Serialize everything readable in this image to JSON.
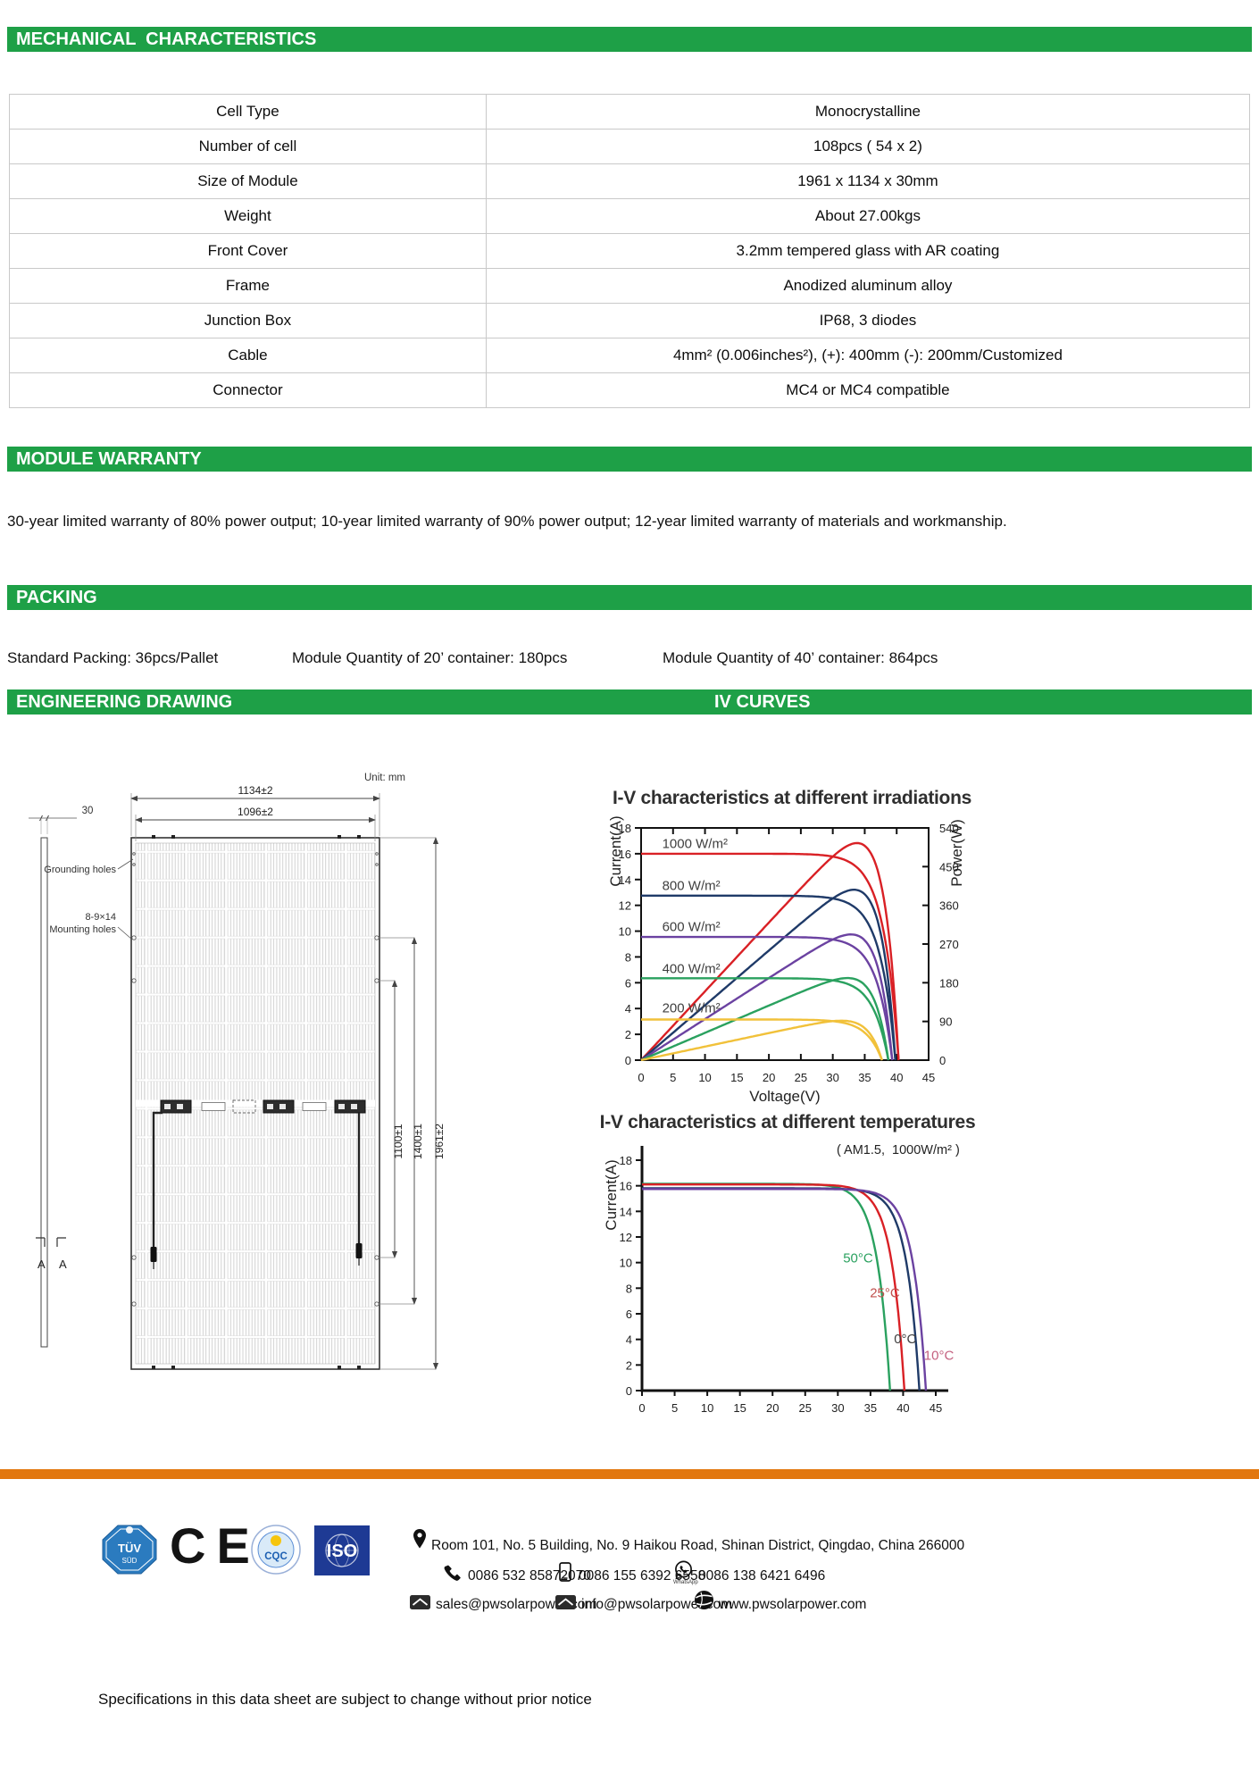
{
  "sections": {
    "mechanical": "MECHANICAL  CHARACTERISTICS",
    "module_warranty": "MODULE WARRANTY",
    "packing": "PACKING",
    "engineering_drawing": "ENGINEERING DRAWING",
    "iv_curves": "IV CURVES"
  },
  "mechanical_table": {
    "rows": [
      {
        "label": "Cell Type",
        "value": "Monocrystalline"
      },
      {
        "label": "Number of cell",
        "value": "108pcs ( 54 x 2)"
      },
      {
        "label": "Size of Module",
        "value": "1961 x 1134 x 30mm"
      },
      {
        "label": "Weight",
        "value": "About 27.00kgs"
      },
      {
        "label": "Front Cover",
        "value": "3.2mm tempered glass with AR coating"
      },
      {
        "label": "Frame",
        "value": "Anodized aluminum alloy"
      },
      {
        "label": "Junction Box",
        "value": "IP68, 3 diodes"
      },
      {
        "label": "Cable",
        "value": "4mm² (0.006inches²), (+): 400mm (-): 200mm/Customized"
      },
      {
        "label": "Connector",
        "value": "MC4 or MC4 compatible"
      }
    ]
  },
  "warranty_text": "30-year limited warranty of 80% power output; 10-year limited warranty of 90% power output; 12-year limited warranty of materials and workmanship.",
  "packing": {
    "item1": "Standard Packing: 36pcs/Pallet",
    "item2": "Module Quantity of 20’ container: 180pcs",
    "item3": "Module Quantity of 40’ container: 864pcs"
  },
  "drawing": {
    "unit": "Unit: mm",
    "dim_width_outer": "1134±2",
    "dim_width_inner": "1096±2",
    "dim_thickness": "30",
    "grounding_label": "Grounding holes",
    "mounting_label_line1": "8-9×14",
    "mounting_label_line2": "Mounting holes",
    "dim_height_1": "1100±1",
    "dim_height_2": "1400±1",
    "dim_height_3": "1961±2",
    "section_mark": "A"
  },
  "chart_data": [
    {
      "type": "line",
      "title": "I-V characteristics at different irradiations",
      "xlabel": "Voltage(V)",
      "ylabel": "Current(A)",
      "y2label": "Power(W)",
      "xlim": [
        0,
        45
      ],
      "ylim": [
        0,
        18
      ],
      "y2lim": [
        0,
        540
      ],
      "x_ticks": [
        0,
        5,
        10,
        15,
        20,
        25,
        30,
        35,
        40,
        45
      ],
      "y_ticks": [
        0,
        2,
        4,
        6,
        8,
        10,
        12,
        14,
        16,
        18
      ],
      "y2_ticks": [
        0,
        90,
        180,
        270,
        360,
        450,
        540
      ],
      "grid": false,
      "legend_position": "inline-labels",
      "has_power_curves": true,
      "knee": 2.4,
      "series": [
        {
          "name": "1000 W/m²",
          "color": "#d92025",
          "isc": 16.0,
          "voc": 40.3,
          "pmax_w": 505,
          "label_pos": [
            3.3,
            16.45
          ]
        },
        {
          "name": "800 W/m²",
          "color": "#1f3a68",
          "isc": 12.75,
          "voc": 39.8,
          "pmax_w": 405,
          "label_pos": [
            3.3,
            13.2
          ]
        },
        {
          "name": "600 W/m²",
          "color": "#6b42a1",
          "isc": 9.55,
          "voc": 39.3,
          "pmax_w": 305,
          "label_pos": [
            3.3,
            10.0
          ]
        },
        {
          "name": "400 W/m²",
          "color": "#2aa15f",
          "isc": 6.35,
          "voc": 38.7,
          "pmax_w": 203,
          "label_pos": [
            3.3,
            6.75
          ]
        },
        {
          "name": "200 W/m²",
          "color": "#f1c13a",
          "isc": 3.15,
          "voc": 37.7,
          "pmax_w": 100,
          "label_pos": [
            3.3,
            3.7
          ]
        }
      ]
    },
    {
      "type": "line",
      "title": "I-V characteristics at different temperatures",
      "annotation": "( AM1.5,  1000W/m² )",
      "xlabel": "",
      "ylabel": "Current(A)",
      "xlim": [
        0,
        45
      ],
      "ylim": [
        0,
        18
      ],
      "x_ticks": [
        0,
        5,
        10,
        15,
        20,
        25,
        30,
        35,
        40,
        45
      ],
      "y_ticks": [
        0,
        2,
        4,
        6,
        8,
        10,
        12,
        14,
        16,
        18
      ],
      "grid": false,
      "legend_position": "inline-labels",
      "has_power_curves": false,
      "knee": 2.0,
      "series": [
        {
          "name": "50°C",
          "color": "#2aa15f",
          "label_color": "#2aa15f",
          "isc": 16.15,
          "voc": 38.0,
          "label_pos": [
            30.8,
            10.0
          ]
        },
        {
          "name": "25°C",
          "color": "#d92025",
          "label_color": "#c0504d",
          "isc": 16.1,
          "voc": 40.2,
          "label_pos": [
            34.9,
            7.3
          ]
        },
        {
          "name": "0°C",
          "color": "#1f3a68",
          "label_color": "#3f3f3f",
          "isc": 15.8,
          "voc": 42.5,
          "label_pos": [
            38.6,
            3.7
          ]
        },
        {
          "name": "10°C",
          "color": "#6b42a1",
          "label_color": "#c4607f",
          "isc": 15.75,
          "voc": 43.5,
          "label_pos": [
            43.2,
            2.4
          ]
        }
      ]
    }
  ],
  "footer": {
    "logos": {
      "tuv_line1": "TÜV",
      "tuv_line2": "SÜD",
      "ce": "CE",
      "cqc": "CQC",
      "iso": "ISO"
    },
    "address": "Room 101, No. 5 Building, No. 9 Haikou Road, Shinan District, Qingdao, China 266000",
    "phone_landline": "0086 532 85872070",
    "phone_mobile": "0086 155 6392 6558",
    "phone_whatsapp": "0086 138 6421 6496",
    "whatsapp_caption": "WhatsApp",
    "email_sales": "sales@pwsolarpower.com",
    "email_info": "info@pwsolarpower.com",
    "website": "www.pwsolarpower.com",
    "note": "Specifications in this data sheet are subject to change without prior notice"
  }
}
